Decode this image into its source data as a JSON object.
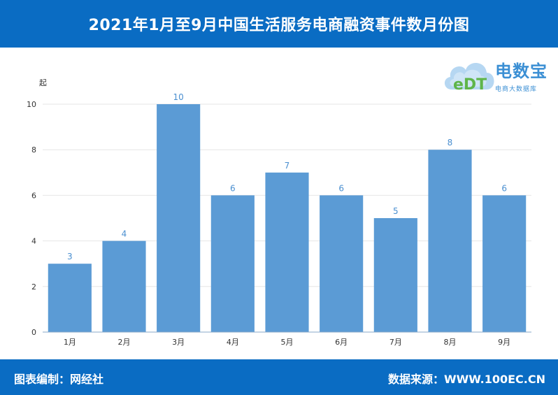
{
  "header": {
    "title": "2021年1月至9月中国生活服务电商融资事件数月份图"
  },
  "footer": {
    "editor": "图表编制：网经社",
    "source": "数据来源：WWW.100EC.CN"
  },
  "logo": {
    "mark_text": "eDT",
    "name": "电数宝",
    "subtitle": "电商大数据库"
  },
  "colors": {
    "header_bg": "#0a6cc3",
    "bar": "#5b9bd5",
    "data_label": "#4a8fd0"
  },
  "chart_data": {
    "type": "bar",
    "categories": [
      "1月",
      "2月",
      "3月",
      "4月",
      "5月",
      "6月",
      "7月",
      "8月",
      "9月"
    ],
    "values": [
      3,
      4,
      10,
      6,
      7,
      6,
      5,
      8,
      6
    ],
    "title": "2021年1月至9月中国生活服务电商融资事件数月份图",
    "xlabel": "",
    "ylabel": "起",
    "ylim": [
      0,
      10
    ],
    "yticks": [
      0,
      2,
      4,
      6,
      8,
      10
    ],
    "grid": true,
    "legend": "none",
    "data_labels": true
  }
}
